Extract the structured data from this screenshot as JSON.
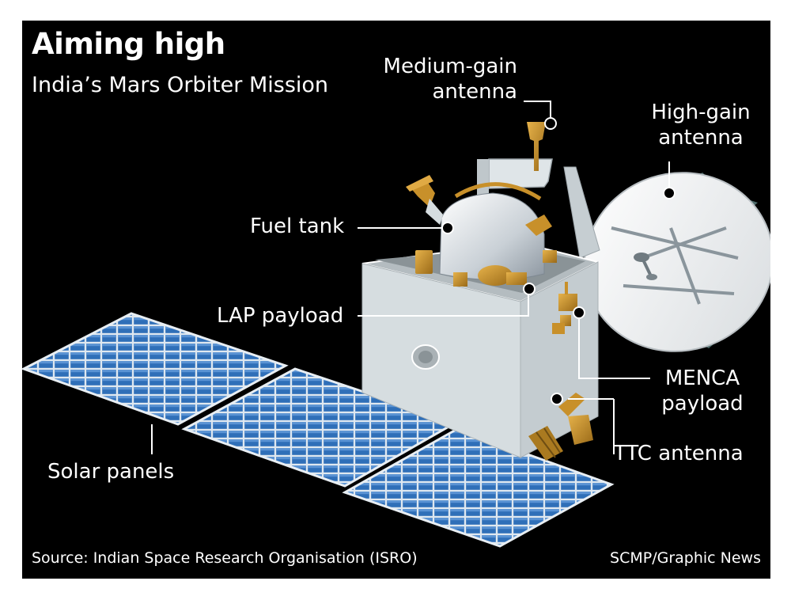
{
  "title": "Aiming high",
  "subtitle": "India’s Mars Orbiter Mission",
  "labels": {
    "medium_gain_line1": "Medium-gain",
    "medium_gain_line2": "antenna",
    "high_gain_line1": "High-gain",
    "high_gain_line2": "antenna",
    "fuel_tank": "Fuel tank",
    "lap_payload": "LAP payload",
    "menca_line1": "MENCA",
    "menca_line2": "payload",
    "ttc_antenna": "TTC antenna",
    "solar_panels": "Solar panels"
  },
  "footer": {
    "source": "Source: Indian Space Research Organisation (ISRO)",
    "credit": "SCMP/Graphic News"
  },
  "colors": {
    "background": "#000000",
    "text": "#ffffff",
    "solar_cell": "#2f6fb8",
    "bus_body": "#d6dde0",
    "gold_foil": "#c8902a"
  }
}
